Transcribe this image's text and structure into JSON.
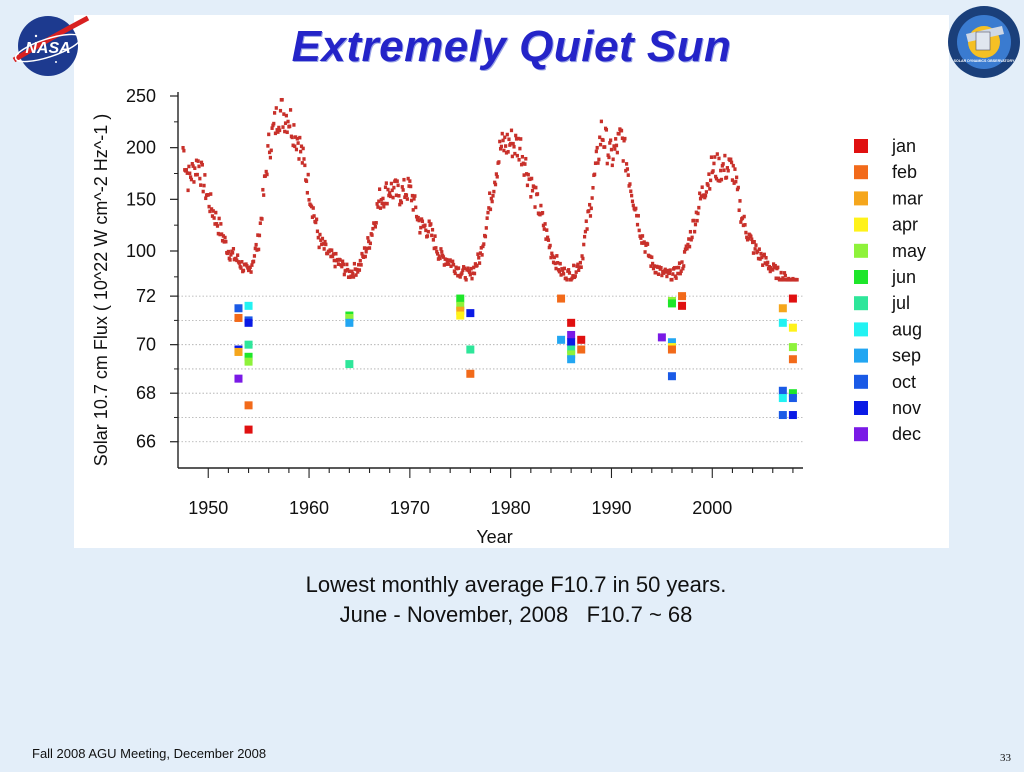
{
  "slide": {
    "title": "Extremely Quiet Sun",
    "caption_line1": "Lowest monthly average F10.7 in 50 years.",
    "caption_line2": "June - November, 2008   F10.7 ~ 68",
    "footer": "Fall 2008 AGU Meeting, December 2008",
    "page_number": "33",
    "nasa_logo_text": "NASA",
    "sdo_logo_text": "SOLAR DYNAMICS OBSERVATORY"
  },
  "chart_data": {
    "type": "scatter",
    "title": "Extremely Quiet Sun",
    "xlabel": "Year",
    "ylabel": "Solar 10.7 cm Flux ( 10^22 W cm^-2 Hz^-1 )",
    "xlim": [
      1947,
      2009
    ],
    "x_ticks": [
      "1950",
      "1960",
      "1970",
      "1980",
      "1990",
      "2000"
    ],
    "upper_panel": {
      "ylim": [
        70,
        250
      ],
      "y_ticks": [
        "100",
        "150",
        "200",
        "250"
      ],
      "series": [
        {
          "x": 1947.5,
          "y": 200
        },
        {
          "x": 1948,
          "y": 170
        },
        {
          "x": 1949,
          "y": 185
        },
        {
          "x": 1950,
          "y": 150
        },
        {
          "x": 1951,
          "y": 125
        },
        {
          "x": 1952,
          "y": 100
        },
        {
          "x": 1953,
          "y": 90
        },
        {
          "x": 1954,
          "y": 78
        },
        {
          "x": 1955,
          "y": 110
        },
        {
          "x": 1956,
          "y": 200
        },
        {
          "x": 1957,
          "y": 235
        },
        {
          "x": 1958,
          "y": 230
        },
        {
          "x": 1959,
          "y": 205
        },
        {
          "x": 1960,
          "y": 160
        },
        {
          "x": 1961,
          "y": 110
        },
        {
          "x": 1962,
          "y": 95
        },
        {
          "x": 1963,
          "y": 88
        },
        {
          "x": 1964,
          "y": 78
        },
        {
          "x": 1965,
          "y": 85
        },
        {
          "x": 1966,
          "y": 110
        },
        {
          "x": 1967,
          "y": 150
        },
        {
          "x": 1968,
          "y": 160
        },
        {
          "x": 1969,
          "y": 155
        },
        {
          "x": 1970,
          "y": 160
        },
        {
          "x": 1971,
          "y": 125
        },
        {
          "x": 1972,
          "y": 120
        },
        {
          "x": 1973,
          "y": 95
        },
        {
          "x": 1974,
          "y": 90
        },
        {
          "x": 1975,
          "y": 80
        },
        {
          "x": 1976,
          "y": 76
        },
        {
          "x": 1977,
          "y": 95
        },
        {
          "x": 1978,
          "y": 150
        },
        {
          "x": 1979,
          "y": 200
        },
        {
          "x": 1980,
          "y": 205
        },
        {
          "x": 1981,
          "y": 200
        },
        {
          "x": 1982,
          "y": 165
        },
        {
          "x": 1983,
          "y": 135
        },
        {
          "x": 1984,
          "y": 100
        },
        {
          "x": 1985,
          "y": 80
        },
        {
          "x": 1986,
          "y": 76
        },
        {
          "x": 1987,
          "y": 90
        },
        {
          "x": 1988,
          "y": 150
        },
        {
          "x": 1989,
          "y": 215
        },
        {
          "x": 1990,
          "y": 190
        },
        {
          "x": 1991,
          "y": 210
        },
        {
          "x": 1992,
          "y": 160
        },
        {
          "x": 1993,
          "y": 115
        },
        {
          "x": 1994,
          "y": 88
        },
        {
          "x": 1995,
          "y": 78
        },
        {
          "x": 1996,
          "y": 75
        },
        {
          "x": 1997,
          "y": 85
        },
        {
          "x": 1998,
          "y": 120
        },
        {
          "x": 1999,
          "y": 155
        },
        {
          "x": 2000,
          "y": 180
        },
        {
          "x": 2001,
          "y": 180
        },
        {
          "x": 2002,
          "y": 180
        },
        {
          "x": 2003,
          "y": 130
        },
        {
          "x": 2004,
          "y": 105
        },
        {
          "x": 2005,
          "y": 92
        },
        {
          "x": 2006,
          "y": 82
        },
        {
          "x": 2007,
          "y": 74
        },
        {
          "x": 2008,
          "y": 70
        }
      ]
    },
    "lower_panel": {
      "ylim": [
        65,
        72.5
      ],
      "y_ticks": [
        "66",
        "68",
        "70",
        "72"
      ],
      "legend_placement": "right",
      "months": [
        {
          "name": "jan",
          "color": "#e01010"
        },
        {
          "name": "feb",
          "color": "#f26a1a"
        },
        {
          "name": "mar",
          "color": "#f5a61c"
        },
        {
          "name": "apr",
          "color": "#fff21a"
        },
        {
          "name": "may",
          "color": "#8ef23a"
        },
        {
          "name": "jun",
          "color": "#1ee62a"
        },
        {
          "name": "jul",
          "color": "#2ee69a"
        },
        {
          "name": "aug",
          "color": "#22f2f2"
        },
        {
          "name": "sep",
          "color": "#22a6f2"
        },
        {
          "name": "oct",
          "color": "#1a5ae6"
        },
        {
          "name": "nov",
          "color": "#0a1ae6"
        },
        {
          "name": "dec",
          "color": "#7a1ae6"
        }
      ],
      "points": [
        {
          "year": 1953,
          "value": 71.5,
          "month": "oct"
        },
        {
          "year": 1953,
          "value": 71.1,
          "month": "feb"
        },
        {
          "year": 1953,
          "value": 69.8,
          "month": "nov"
        },
        {
          "year": 1953,
          "value": 69.7,
          "month": "mar"
        },
        {
          "year": 1953,
          "value": 68.6,
          "month": "dec"
        },
        {
          "year": 1954,
          "value": 71.6,
          "month": "aug"
        },
        {
          "year": 1954,
          "value": 71.0,
          "month": "oct"
        },
        {
          "year": 1954,
          "value": 70.9,
          "month": "nov"
        },
        {
          "year": 1954,
          "value": 70.0,
          "month": "jul"
        },
        {
          "year": 1954,
          "value": 69.5,
          "month": "jun"
        },
        {
          "year": 1954,
          "value": 69.3,
          "month": "may"
        },
        {
          "year": 1954,
          "value": 67.5,
          "month": "feb"
        },
        {
          "year": 1954,
          "value": 66.5,
          "month": "jan"
        },
        {
          "year": 1964,
          "value": 71.2,
          "month": "jun"
        },
        {
          "year": 1964,
          "value": 71.1,
          "month": "may"
        },
        {
          "year": 1964,
          "value": 70.9,
          "month": "sep"
        },
        {
          "year": 1964,
          "value": 69.2,
          "month": "jul"
        },
        {
          "year": 1975,
          "value": 71.9,
          "month": "jun"
        },
        {
          "year": 1975,
          "value": 71.6,
          "month": "may"
        },
        {
          "year": 1975,
          "value": 71.4,
          "month": "mar"
        },
        {
          "year": 1975,
          "value": 71.2,
          "month": "apr"
        },
        {
          "year": 1976,
          "value": 71.3,
          "month": "nov"
        },
        {
          "year": 1976,
          "value": 69.8,
          "month": "jul"
        },
        {
          "year": 1976,
          "value": 68.8,
          "month": "feb"
        },
        {
          "year": 1985,
          "value": 71.9,
          "month": "feb"
        },
        {
          "year": 1985,
          "value": 70.2,
          "month": "sep"
        },
        {
          "year": 1986,
          "value": 70.9,
          "month": "jan"
        },
        {
          "year": 1986,
          "value": 70.4,
          "month": "dec"
        },
        {
          "year": 1986,
          "value": 70.1,
          "month": "nov"
        },
        {
          "year": 1986,
          "value": 69.8,
          "month": "jul"
        },
        {
          "year": 1986,
          "value": 69.6,
          "month": "may"
        },
        {
          "year": 1986,
          "value": 69.4,
          "month": "sep"
        },
        {
          "year": 1987,
          "value": 70.2,
          "month": "jan"
        },
        {
          "year": 1987,
          "value": 69.8,
          "month": "feb"
        },
        {
          "year": 1995,
          "value": 70.3,
          "month": "dec"
        },
        {
          "year": 1996,
          "value": 71.8,
          "month": "may"
        },
        {
          "year": 1996,
          "value": 71.7,
          "month": "jun"
        },
        {
          "year": 1996,
          "value": 70.1,
          "month": "sep"
        },
        {
          "year": 1996,
          "value": 69.9,
          "month": "apr"
        },
        {
          "year": 1996,
          "value": 69.8,
          "month": "feb"
        },
        {
          "year": 1996,
          "value": 68.7,
          "month": "oct"
        },
        {
          "year": 1997,
          "value": 72.0,
          "month": "feb"
        },
        {
          "year": 1997,
          "value": 71.6,
          "month": "jan"
        },
        {
          "year": 2007,
          "value": 71.5,
          "month": "mar"
        },
        {
          "year": 2007,
          "value": 70.9,
          "month": "aug"
        },
        {
          "year": 2007,
          "value": 68.1,
          "month": "oct"
        },
        {
          "year": 2007,
          "value": 67.8,
          "month": "aug"
        },
        {
          "year": 2007,
          "value": 67.1,
          "month": "oct"
        },
        {
          "year": 2008,
          "value": 71.9,
          "month": "jan"
        },
        {
          "year": 2008,
          "value": 70.7,
          "month": "apr"
        },
        {
          "year": 2008,
          "value": 69.9,
          "month": "may"
        },
        {
          "year": 2008,
          "value": 69.4,
          "month": "feb"
        },
        {
          "year": 2008,
          "value": 68.0,
          "month": "jun"
        },
        {
          "year": 2008,
          "value": 67.8,
          "month": "oct"
        },
        {
          "year": 2008,
          "value": 67.1,
          "month": "nov"
        }
      ]
    }
  }
}
